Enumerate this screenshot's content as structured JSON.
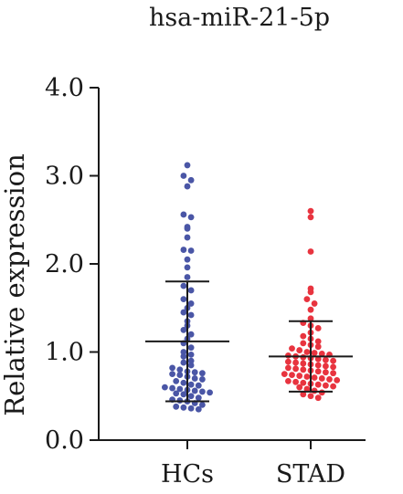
{
  "chart_data": {
    "type": "scatter",
    "title": "hsa-miR-21-5p",
    "xlabel": "",
    "ylabel": "Relative expression",
    "ylim": [
      0,
      4
    ],
    "yticks": [
      "0.0",
      "1.0",
      "2.0",
      "3.0",
      "4.0"
    ],
    "categories": [
      "HCs",
      "STAD"
    ],
    "grid": false,
    "series": [
      {
        "category": "HCs",
        "color": "#4a56a6",
        "mean": 1.12,
        "sd_upper": 1.8,
        "sd_lower": 0.44,
        "values": [
          3.12,
          3.0,
          2.95,
          2.88,
          2.56,
          2.53,
          2.42,
          2.4,
          2.3,
          2.16,
          2.15,
          2.05,
          1.96,
          1.85,
          1.75,
          1.7,
          1.6,
          1.55,
          1.5,
          1.45,
          1.42,
          1.35,
          1.3,
          1.25,
          1.2,
          1.15,
          1.1,
          1.05,
          1.0,
          0.97,
          0.95,
          0.9,
          0.88,
          0.85,
          0.82,
          0.8,
          0.78,
          0.77,
          0.76,
          0.75,
          0.74,
          0.72,
          0.7,
          0.69,
          0.67,
          0.65,
          0.63,
          0.62,
          0.6,
          0.59,
          0.58,
          0.57,
          0.56,
          0.55,
          0.54,
          0.53,
          0.52,
          0.5,
          0.48,
          0.46,
          0.45,
          0.44,
          0.42,
          0.4,
          0.38,
          0.37,
          0.36,
          0.35
        ]
      },
      {
        "category": "STAD",
        "color": "#e8343f",
        "mean": 0.95,
        "sd_upper": 1.35,
        "sd_lower": 0.55,
        "values": [
          2.6,
          2.53,
          2.14,
          1.72,
          1.68,
          1.6,
          1.55,
          1.48,
          1.38,
          1.33,
          1.3,
          1.27,
          1.22,
          1.18,
          1.15,
          1.12,
          1.1,
          1.08,
          1.06,
          1.04,
          1.02,
          1.0,
          0.99,
          0.98,
          0.97,
          0.96,
          0.95,
          0.94,
          0.93,
          0.92,
          0.91,
          0.9,
          0.89,
          0.88,
          0.87,
          0.86,
          0.85,
          0.84,
          0.83,
          0.82,
          0.81,
          0.8,
          0.79,
          0.78,
          0.77,
          0.76,
          0.75,
          0.74,
          0.73,
          0.72,
          0.71,
          0.7,
          0.69,
          0.68,
          0.67,
          0.66,
          0.65,
          0.64,
          0.63,
          0.62,
          0.61,
          0.6,
          0.58,
          0.56,
          0.54,
          0.52,
          0.5,
          0.48
        ]
      }
    ]
  }
}
